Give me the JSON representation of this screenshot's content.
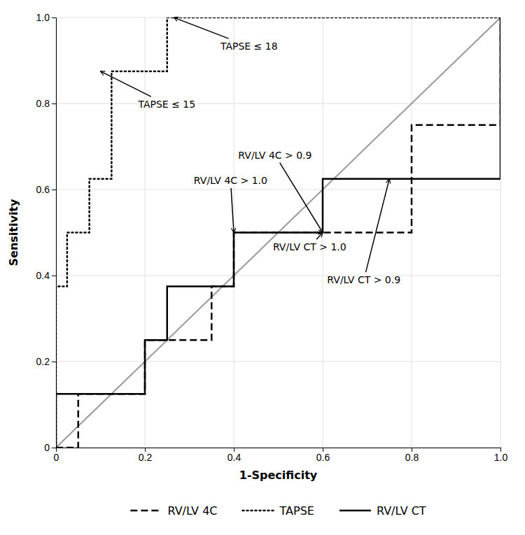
{
  "chart_data": {
    "type": "line",
    "xlabel": "1-Specificity",
    "ylabel": "Sensitivity",
    "xlim": [
      0,
      1.0
    ],
    "ylim": [
      0,
      1.0
    ],
    "xticks": [
      0,
      0.2,
      0.4,
      0.6,
      0.8,
      {
        "value": 1.0,
        "label": "1.0"
      }
    ],
    "yticks": [
      0,
      0.2,
      0.4,
      0.6,
      0.8,
      {
        "value": 1.0,
        "label": "1.0"
      }
    ],
    "grid": true,
    "legend": "bottom",
    "series": [
      {
        "color": "#999999",
        "line_style": "solid",
        "x": [
          0,
          1
        ],
        "values": [
          0,
          1
        ]
      },
      {
        "name": "RV/LV 4C",
        "color": "#000000",
        "line_style": "dashed",
        "x": [
          0,
          0.05,
          0.05,
          0.2,
          0.2,
          0.35,
          0.35,
          0.4,
          0.4,
          0.6,
          0.6,
          0.8,
          0.8,
          1.0,
          1.0
        ],
        "values": [
          0,
          0,
          0.125,
          0.125,
          0.25,
          0.25,
          0.375,
          0.375,
          0.5,
          0.5,
          0.5,
          0.5,
          0.75,
          0.75,
          1.0
        ]
      },
      {
        "name": "TAPSE",
        "color": "#000000",
        "line_style": "dotted",
        "x": [
          0,
          0,
          0.025,
          0.025,
          0.05,
          0.05,
          0.075,
          0.075,
          0.1,
          0.1,
          0.125,
          0.125,
          0.15,
          0.15,
          0.175,
          0.175,
          0.2,
          0.2,
          0.225,
          0.225,
          0.25,
          0.25,
          1.0
        ],
        "values": [
          0,
          0.375,
          0.375,
          0.5,
          0.5,
          0.5,
          0.5,
          0.625,
          0.625,
          0.625,
          0.625,
          0.875,
          0.875,
          0.875,
          0.875,
          0.875,
          0.875,
          0.875,
          0.875,
          0.875,
          0.875,
          1.0,
          1.0
        ]
      },
      {
        "name": "RV/LV CT",
        "color": "#000000",
        "line_style": "solid",
        "x": [
          0,
          0,
          0.2,
          0.2,
          0.25,
          0.25,
          0.4,
          0.4,
          0.6,
          0.6,
          0.75,
          0.75,
          1.0,
          1.0
        ],
        "values": [
          0,
          0.125,
          0.125,
          0.25,
          0.25,
          0.375,
          0.375,
          0.5,
          0.5,
          0.625,
          0.625,
          0.625,
          0.625,
          1.0
        ]
      }
    ],
    "annotations": [
      {
        "text": "TAPSE ≤ 18",
        "xy": [
          0.265,
          1.0
        ],
        "xytext": [
          0.37,
          0.925
        ]
      },
      {
        "text": "TAPSE ≤ 15",
        "xy": [
          0.1,
          0.875
        ],
        "xytext": [
          0.185,
          0.79
        ]
      },
      {
        "text": "RV/LV 4C > 0.9",
        "xy": [
          0.6,
          0.5
        ],
        "xytext": [
          0.41,
          0.672
        ]
      },
      {
        "text": "RV/LV 4C > 1.0",
        "xy": [
          0.4,
          0.5
        ],
        "xytext": [
          0.31,
          0.613
        ]
      },
      {
        "text": "RV/LV CT > 1.0",
        "xy": [
          0.6,
          0.5
        ],
        "xytext": [
          0.488,
          0.458
        ]
      },
      {
        "text": "RV/LV CT > 0.9",
        "xy": [
          0.75,
          0.625
        ],
        "xytext": [
          0.61,
          0.382
        ]
      }
    ]
  }
}
